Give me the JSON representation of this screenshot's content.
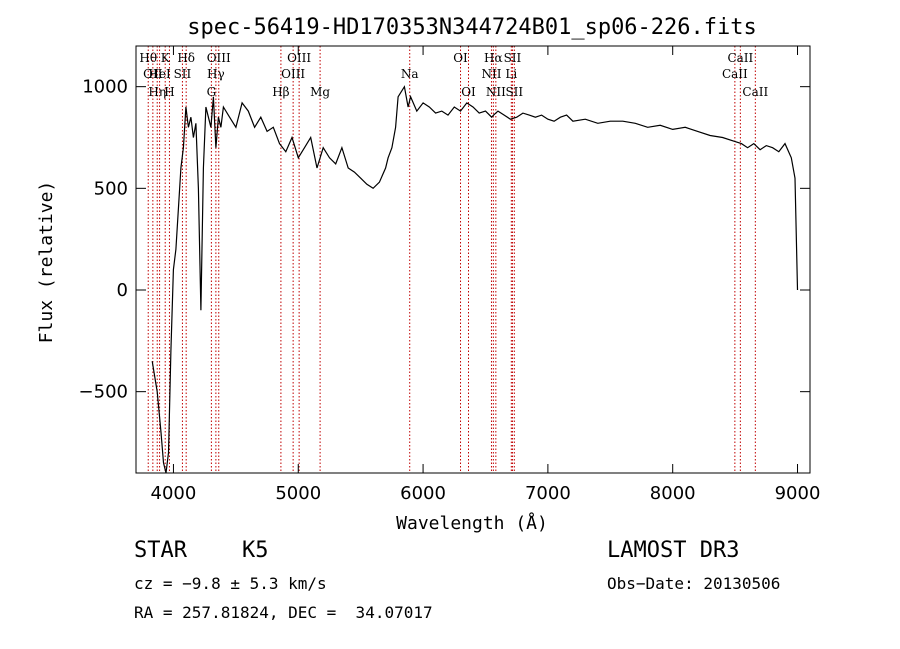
{
  "chart_data": {
    "type": "line",
    "title": "spec-56419-HD170353N344724B01_sp06-226.fits",
    "xlabel": "Wavelength (Å)",
    "ylabel": "Flux (relative)",
    "xlim": [
      3700,
      9100
    ],
    "ylim": [
      -900,
      1200
    ],
    "x_ticks": [
      4000,
      5000,
      6000,
      7000,
      8000,
      9000
    ],
    "y_ticks": [
      -500,
      0,
      500,
      1000
    ],
    "x_tick_labels": [
      "4000",
      "5000",
      "6000",
      "7000",
      "8000",
      "9000"
    ],
    "y_tick_labels": [
      "−500",
      "0",
      "500",
      "1000"
    ],
    "grid": false,
    "legend": "none",
    "line_color": "#000000",
    "marker_color": "#c00000",
    "series": [
      {
        "x": [
          3830,
          3870,
          3900,
          3920,
          3940,
          3960,
          3980,
          4000,
          4020,
          4040,
          4060,
          4080,
          4100,
          4120,
          4140,
          4160,
          4180,
          4200,
          4220,
          4240,
          4260,
          4280,
          4300,
          4320,
          4340,
          4360,
          4380,
          4400,
          4450,
          4500,
          4550,
          4600,
          4650,
          4700,
          4750,
          4800,
          4850,
          4900,
          4950,
          5000,
          5050,
          5100,
          5150,
          5200,
          5250,
          5300,
          5350,
          5400,
          5450,
          5500,
          5550,
          5600,
          5650,
          5700,
          5720,
          5750,
          5780,
          5800,
          5850,
          5880,
          5900,
          5950,
          6000,
          6050,
          6100,
          6150,
          6200,
          6250,
          6300,
          6350,
          6400,
          6450,
          6500,
          6550,
          6565,
          6600,
          6650,
          6700,
          6750,
          6800,
          6850,
          6900,
          6950,
          7000,
          7050,
          7100,
          7150,
          7200,
          7300,
          7400,
          7500,
          7600,
          7700,
          7800,
          7900,
          8000,
          8100,
          8200,
          8300,
          8400,
          8500,
          8550,
          8600,
          8650,
          8700,
          8750,
          8800,
          8850,
          8900,
          8950,
          8980,
          9000
        ],
        "y": [
          -350,
          -500,
          -700,
          -850,
          -900,
          -800,
          -300,
          100,
          200,
          400,
          600,
          700,
          900,
          800,
          850,
          750,
          820,
          500,
          -100,
          600,
          900,
          850,
          800,
          950,
          700,
          850,
          800,
          900,
          850,
          800,
          920,
          880,
          800,
          850,
          780,
          800,
          720,
          680,
          750,
          650,
          700,
          750,
          600,
          700,
          650,
          620,
          700,
          600,
          580,
          550,
          520,
          500,
          530,
          600,
          650,
          700,
          800,
          950,
          1000,
          900,
          950,
          880,
          920,
          900,
          870,
          880,
          860,
          900,
          880,
          920,
          900,
          870,
          880,
          850,
          860,
          880,
          860,
          840,
          850,
          870,
          860,
          850,
          860,
          840,
          830,
          850,
          860,
          830,
          840,
          820,
          830,
          830,
          820,
          800,
          810,
          790,
          800,
          780,
          760,
          750,
          730,
          720,
          700,
          720,
          690,
          710,
          700,
          680,
          720,
          650,
          550,
          0
        ]
      }
    ],
    "line_markers": [
      {
        "wave": 3798,
        "label": "Hθ",
        "row": 1
      },
      {
        "wave": 3835,
        "label": "OII",
        "row": 2
      },
      {
        "wave": 3870,
        "label": "Hη",
        "row": 3
      },
      {
        "wave": 3889,
        "label": "HeI",
        "row": 2
      },
      {
        "wave": 3934,
        "label": "K",
        "row": 1
      },
      {
        "wave": 3968,
        "label": "H",
        "row": 3
      },
      {
        "wave": 4072,
        "label": "SII",
        "row": 2
      },
      {
        "wave": 4102,
        "label": "Hδ",
        "row": 1
      },
      {
        "wave": 4304,
        "label": "G",
        "row": 3
      },
      {
        "wave": 4340,
        "label": "Hγ",
        "row": 2
      },
      {
        "wave": 4363,
        "label": "OIII",
        "row": 1
      },
      {
        "wave": 4861,
        "label": "Hβ",
        "row": 3
      },
      {
        "wave": 4959,
        "label": "OIII",
        "row": 2
      },
      {
        "wave": 5007,
        "label": "OIII",
        "row": 1
      },
      {
        "wave": 5175,
        "label": "Mg",
        "row": 3
      },
      {
        "wave": 5893,
        "label": "Na",
        "row": 2
      },
      {
        "wave": 6300,
        "label": "OI",
        "row": 1
      },
      {
        "wave": 6364,
        "label": "OI",
        "row": 3
      },
      {
        "wave": 6548,
        "label": "NII",
        "row": 2
      },
      {
        "wave": 6563,
        "label": "Hα",
        "row": 1
      },
      {
        "wave": 6583,
        "label": "NII",
        "row": 3
      },
      {
        "wave": 6707,
        "label": "Li",
        "row": 2
      },
      {
        "wave": 6716,
        "label": "SII",
        "row": 1
      },
      {
        "wave": 6731,
        "label": "SII",
        "row": 3
      },
      {
        "wave": 8498,
        "label": "CaII",
        "row": 2
      },
      {
        "wave": 8542,
        "label": "CaII",
        "row": 1
      },
      {
        "wave": 8662,
        "label": "CaII",
        "row": 3
      }
    ]
  },
  "info": {
    "object_class": "STAR",
    "subclass": "K5",
    "survey": "LAMOST DR3",
    "redshift_line": "cz = −9.8 ± 5.3 km/s",
    "obs_date": "Obs−Date: 20130506",
    "coords": "RA = 257.81824, DEC =  34.07017"
  }
}
